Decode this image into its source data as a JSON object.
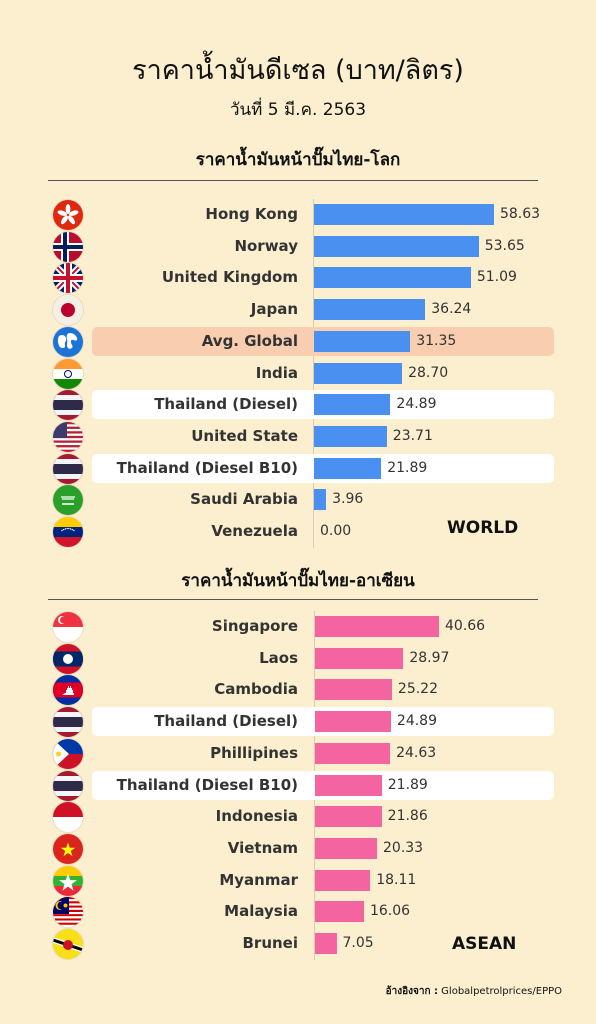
{
  "header": {
    "title": "ราคาน้ำมันดีเซล (บาท/ลิตร)",
    "date": "วันที่ 5 มี.ค. 2563"
  },
  "world": {
    "section_title": "ราคาน้ำมันหน้าปั๊มไทย-โลก",
    "tag": "WORLD"
  },
  "asean": {
    "section_title": "ราคาน้ำมันหน้าปั๊มไทย-อาเซียน",
    "tag": "ASEAN"
  },
  "source": {
    "label": "อ้างอิงจาก :",
    "text": "Globalpetrolprices/EPPO"
  },
  "colors": {
    "background": "#fcefcf",
    "world_bar": "#4a90f0",
    "asean_bar": "#f464a0",
    "global_highlight": "#f8cdb0",
    "thailand_highlight": "#ffffff"
  },
  "chart_data": [
    {
      "type": "bar",
      "orientation": "horizontal",
      "title": "ราคาน้ำมันหน้าปั๊มไทย-โลก",
      "categories": [
        "Hong Kong",
        "Norway",
        "United Kingdom",
        "Japan",
        "Avg. Global",
        "India",
        "Thailand (Diesel)",
        "United State",
        "Thailand (Diesel B10)",
        "Saudi Arabia",
        "Venezuela"
      ],
      "values": [
        58.63,
        53.65,
        51.09,
        36.24,
        31.35,
        28.7,
        24.89,
        23.71,
        21.89,
        3.96,
        0.0
      ],
      "value_labels": [
        "58.63",
        "53.65",
        "51.09",
        "36.24",
        "31.35",
        "28.70",
        "24.89",
        "23.71",
        "21.89",
        "3.96",
        "0.00"
      ],
      "flags": [
        "hong-kong-flag-icon",
        "norway-flag-icon",
        "uk-flag-icon",
        "japan-flag-icon",
        "globe-icon",
        "india-flag-icon",
        "thailand-flag-icon",
        "usa-flag-icon",
        "thailand-flag-icon",
        "saudi-arabia-flag-icon",
        "venezuela-flag-icon"
      ],
      "highlights": [
        "",
        "",
        "",
        "",
        "global",
        "",
        "thailand",
        "",
        "thailand",
        "",
        ""
      ],
      "xlim": [
        0,
        62
      ]
    },
    {
      "type": "bar",
      "orientation": "horizontal",
      "title": "ราคาน้ำมันหน้าปั๊มไทย-อาเซียน",
      "categories": [
        "Singapore",
        "Laos",
        "Cambodia",
        "Thailand (Diesel)",
        "Phillipines",
        "Thailand (Diesel B10)",
        "Indonesia",
        "Vietnam",
        "Myanmar",
        "Malaysia",
        "Brunei"
      ],
      "values": [
        40.66,
        28.97,
        25.22,
        24.89,
        24.63,
        21.89,
        21.86,
        20.33,
        18.11,
        16.06,
        7.05
      ],
      "value_labels": [
        "40.66",
        "28.97",
        "25.22",
        "24.89",
        "24.63",
        "21.89",
        "21.86",
        "20.33",
        "18.11",
        "16.06",
        "7.05"
      ],
      "flags": [
        "singapore-flag-icon",
        "laos-flag-icon",
        "cambodia-flag-icon",
        "thailand-flag-icon",
        "philippines-flag-icon",
        "thailand-flag-icon",
        "indonesia-flag-icon",
        "vietnam-flag-icon",
        "myanmar-flag-icon",
        "malaysia-flag-icon",
        "brunei-flag-icon"
      ],
      "highlights": [
        "",
        "",
        "",
        "thailand",
        "",
        "thailand",
        "",
        "",
        "",
        "",
        ""
      ],
      "xlim": [
        0,
        62
      ]
    }
  ]
}
